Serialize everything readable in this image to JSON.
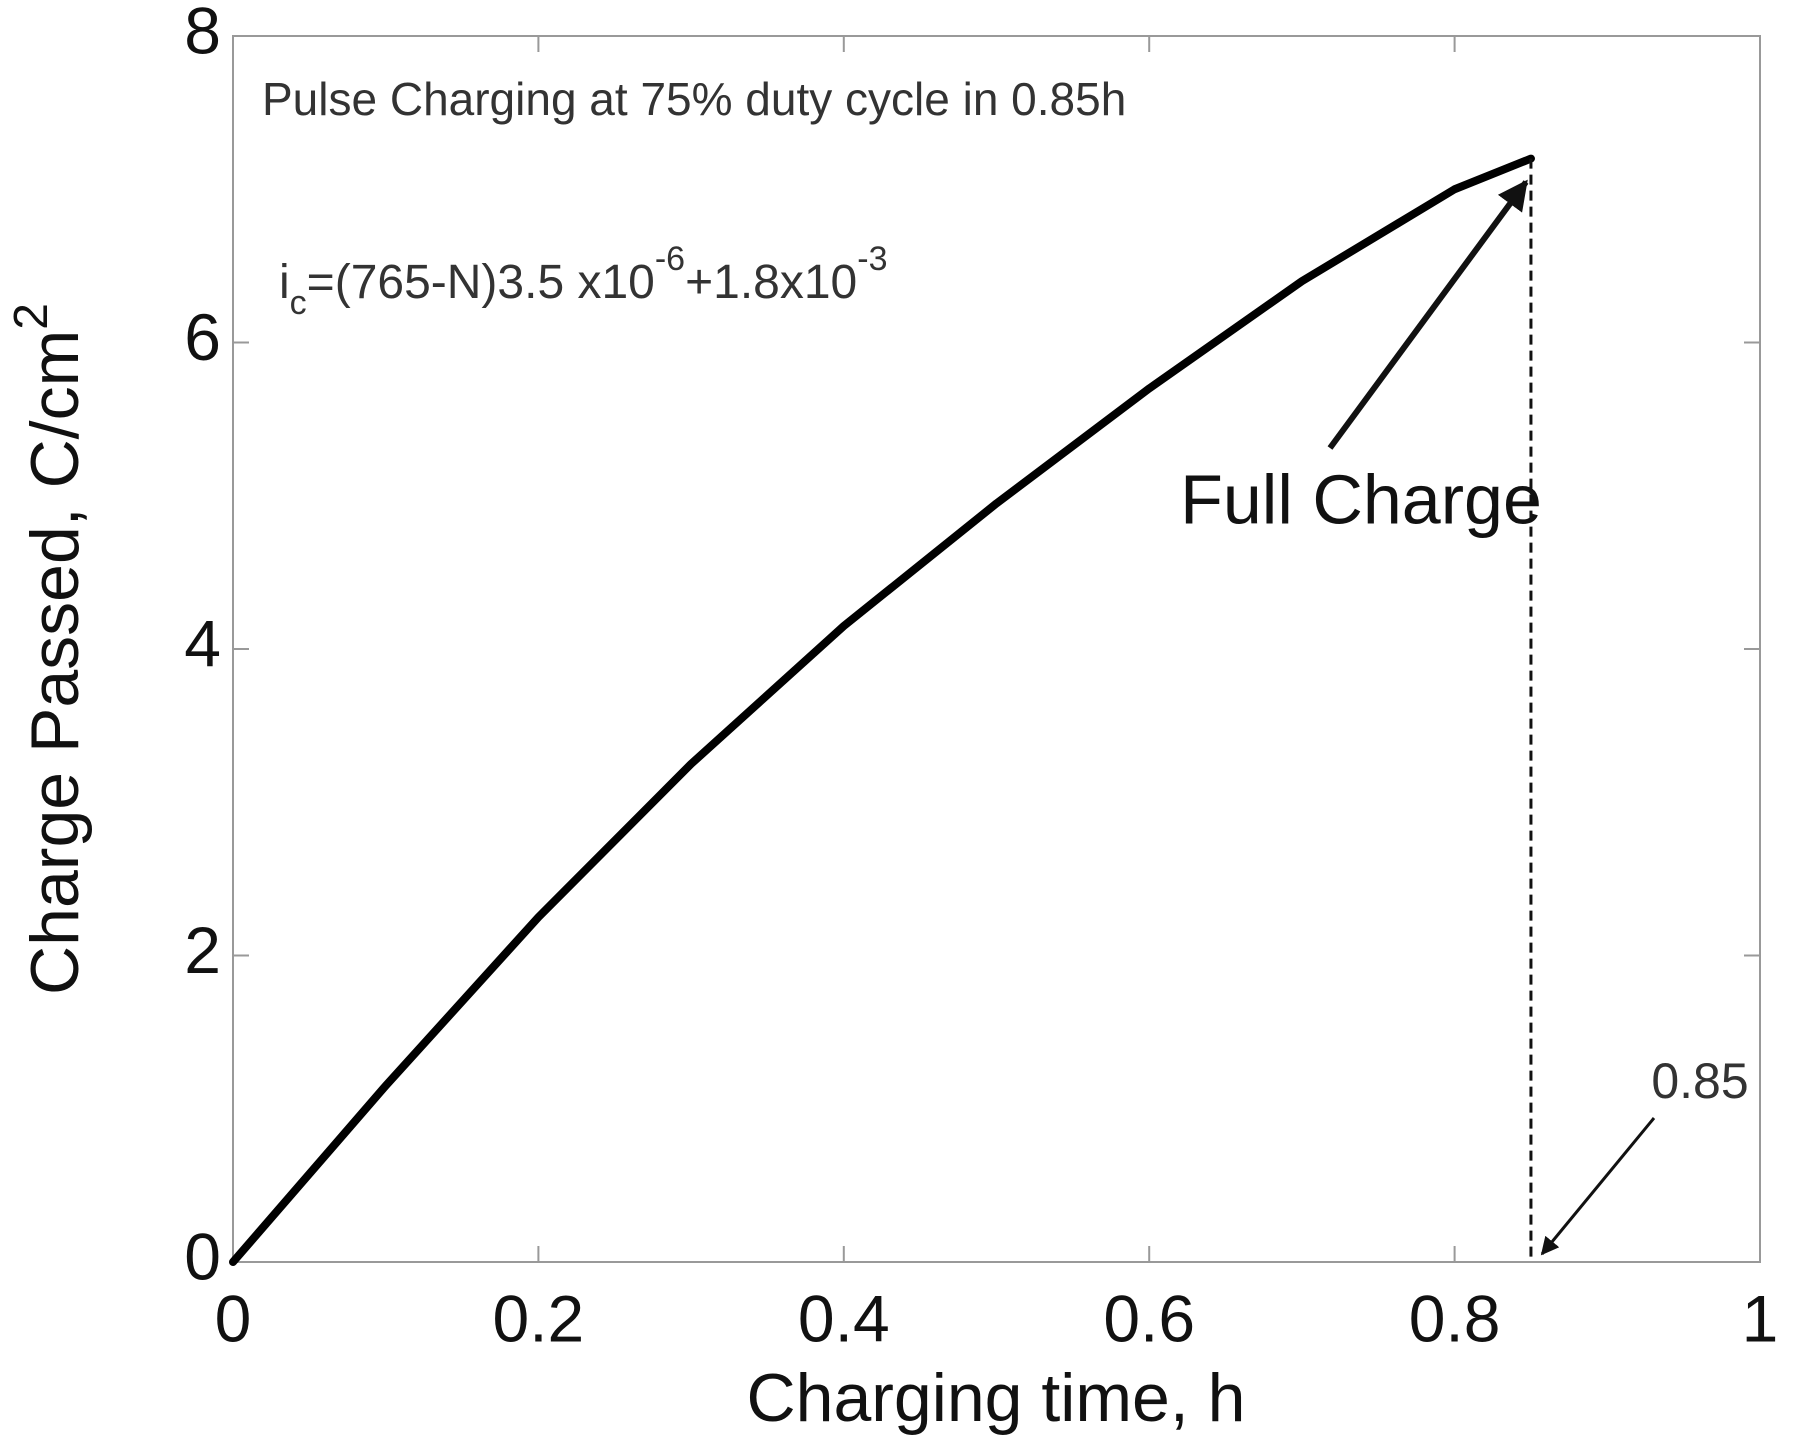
{
  "chart_data": {
    "type": "line",
    "x": [
      0,
      0.1,
      0.2,
      0.3,
      0.4,
      0.5,
      0.6,
      0.7,
      0.8,
      0.85
    ],
    "series": [
      {
        "color": "#000000",
        "values": [
          0,
          1.15,
          2.25,
          3.25,
          4.15,
          4.95,
          5.7,
          6.4,
          7.0,
          7.2
        ]
      }
    ],
    "xlim": [
      0,
      1
    ],
    "ylim": [
      0,
      8
    ],
    "xticks": [
      0,
      0.2,
      0.4,
      0.6,
      0.8,
      1
    ],
    "yticks": [
      0,
      2,
      4,
      6,
      8
    ],
    "xlabel": "Charging time, h",
    "ylabel": [
      "Charge Passed, C/cm",
      "2"
    ],
    "annotations": {
      "title_note": "Pulse Charging at 75% duty cycle in 0.85h",
      "formula": [
        "i",
        "c",
        "=(765-N)3.5 x10",
        "-6",
        "+1.8x10",
        "-3"
      ],
      "full_charge": "Full Charge",
      "end_time": "0.85"
    },
    "grid": false
  }
}
